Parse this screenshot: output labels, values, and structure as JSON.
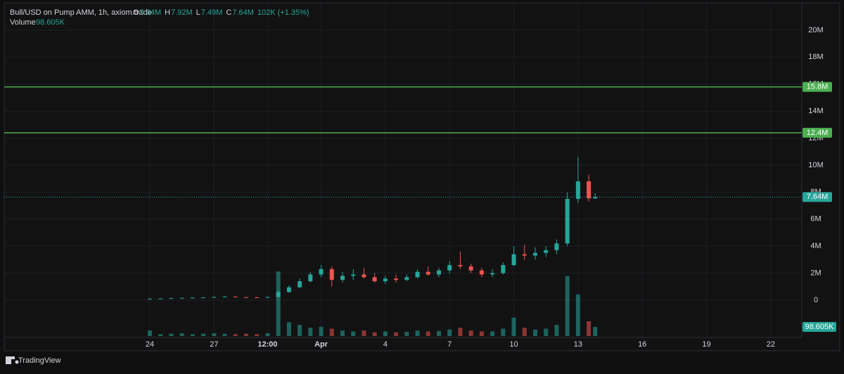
{
  "chart_data": {
    "type": "candlestick",
    "title": "Bull/USD on Pump AMM, 1h, axiom.trade",
    "legend": [
      {
        "key": "O",
        "value": "7.54M"
      },
      {
        "key": "H",
        "value": "7.92M"
      },
      {
        "key": "L",
        "value": "7.49M"
      },
      {
        "key": "C",
        "value": "7.64M"
      }
    ],
    "change": "102K (+1.35%)",
    "volume_name": "Volume",
    "volume_last": {
      "value": 98605,
      "label": "98.605K"
    },
    "up_color": "#26a69a",
    "down_color": "#ef5350",
    "x": [
      24,
      24.5,
      25,
      25.5,
      26,
      26.5,
      27,
      27.5,
      28,
      28.5,
      29,
      29.5,
      30,
      30.5,
      31,
      31.5,
      32,
      32.5,
      33,
      33.5,
      34,
      34.5,
      35,
      35.5,
      36,
      36.5,
      37,
      37.5,
      38,
      38.5,
      39,
      39.5,
      40,
      40.5,
      41,
      41.5,
      42,
      42.5,
      43,
      43.5,
      44,
      44.5,
      44.8
    ],
    "open": [
      100000,
      110000,
      120000,
      150000,
      170000,
      190000,
      200000,
      230000,
      260000,
      220000,
      210000,
      190000,
      230000,
      600000,
      950000,
      1400000,
      1900000,
      2300000,
      1500000,
      1800000,
      1900000,
      1700000,
      1400000,
      1600000,
      1500000,
      1700000,
      2100000,
      1900000,
      2200000,
      2600000,
      2500000,
      2200000,
      1900000,
      2000000,
      2600000,
      3400000,
      3300000,
      3500000,
      3700000,
      4200000,
      7500000,
      8800000,
      7540000
    ],
    "high": [
      130000,
      140000,
      170000,
      190000,
      210000,
      230000,
      260000,
      290000,
      280000,
      250000,
      240000,
      260000,
      700000,
      1100000,
      1600000,
      2100000,
      2600000,
      2500000,
      2100000,
      2300000,
      2400000,
      2000000,
      1800000,
      1900000,
      1900000,
      2300000,
      2500000,
      2400000,
      2900000,
      3600000,
      2700000,
      2400000,
      2300000,
      2800000,
      4000000,
      4100000,
      3900000,
      4000000,
      4500000,
      8000000,
      10600000,
      9300000,
      7920000
    ],
    "low": [
      80000,
      100000,
      110000,
      130000,
      150000,
      170000,
      180000,
      200000,
      200000,
      180000,
      170000,
      160000,
      220000,
      550000,
      900000,
      1300000,
      1700000,
      1000000,
      1300000,
      1500000,
      1600000,
      1300000,
      1200000,
      1300000,
      1400000,
      1600000,
      1800000,
      1700000,
      2000000,
      2300000,
      2000000,
      1700000,
      1700000,
      1900000,
      2500000,
      3000000,
      3000000,
      3200000,
      3400000,
      4000000,
      7200000,
      7300000,
      7490000
    ],
    "close": [
      110000,
      120000,
      150000,
      170000,
      190000,
      200000,
      230000,
      260000,
      220000,
      210000,
      190000,
      230000,
      600000,
      950000,
      1400000,
      1900000,
      2300000,
      1500000,
      1800000,
      1900000,
      1700000,
      1400000,
      1600000,
      1500000,
      1700000,
      2100000,
      1900000,
      2200000,
      2600000,
      2500000,
      2200000,
      1900000,
      2000000,
      2600000,
      3400000,
      3300000,
      3500000,
      3700000,
      4200000,
      7500000,
      8800000,
      7540000,
      7640000
    ],
    "volume": [
      60000,
      20000,
      25000,
      30000,
      20000,
      25000,
      30000,
      25000,
      20000,
      25000,
      20000,
      30000,
      700000,
      150000,
      120000,
      90000,
      100000,
      80000,
      60000,
      50000,
      60000,
      40000,
      50000,
      40000,
      45000,
      60000,
      50000,
      55000,
      70000,
      90000,
      60000,
      50000,
      50000,
      80000,
      200000,
      90000,
      70000,
      80000,
      120000,
      650000,
      450000,
      160000,
      98605
    ],
    "xlim": [
      17.2,
      54.45
    ],
    "xticks": [
      24,
      27,
      {
        "value": 29.5,
        "label": "12:00"
      },
      {
        "value": 32,
        "label": "Apr"
      },
      {
        "value": 35,
        "label": "4"
      },
      {
        "value": 38,
        "label": "7"
      },
      {
        "value": 41,
        "label": "10"
      },
      {
        "value": 44,
        "label": "13"
      },
      {
        "value": 47,
        "label": "16"
      },
      {
        "value": 50,
        "label": "19"
      },
      {
        "value": 53,
        "label": "22"
      }
    ],
    "ylim": [
      -2660000,
      21820000
    ],
    "yticks": [
      0,
      {
        "value": 2000000,
        "label": "2M"
      },
      {
        "value": 4000000,
        "label": "4M"
      },
      {
        "value": 6000000,
        "label": "6M"
      },
      {
        "value": 8000000,
        "label": "8M"
      },
      {
        "value": 10000000,
        "label": "10M"
      },
      {
        "value": 12000000,
        "label": "12M"
      },
      {
        "value": 14000000,
        "label": "14M"
      },
      {
        "value": 16000000,
        "label": "16M"
      },
      {
        "value": 18000000,
        "label": "18M"
      },
      {
        "value": 20000000,
        "label": "20M"
      }
    ],
    "y2lim": [
      0,
      800000
    ],
    "grid": true,
    "price_lines": [
      {
        "value": 15800000,
        "label": "15.8M",
        "color": "#4caf50"
      },
      {
        "value": 12400000,
        "label": "12.4M",
        "color": "#4caf50"
      }
    ],
    "last_price": {
      "value": 7640000,
      "label": "7.64M",
      "color": "#26a69a"
    },
    "footer": "TradingView"
  }
}
